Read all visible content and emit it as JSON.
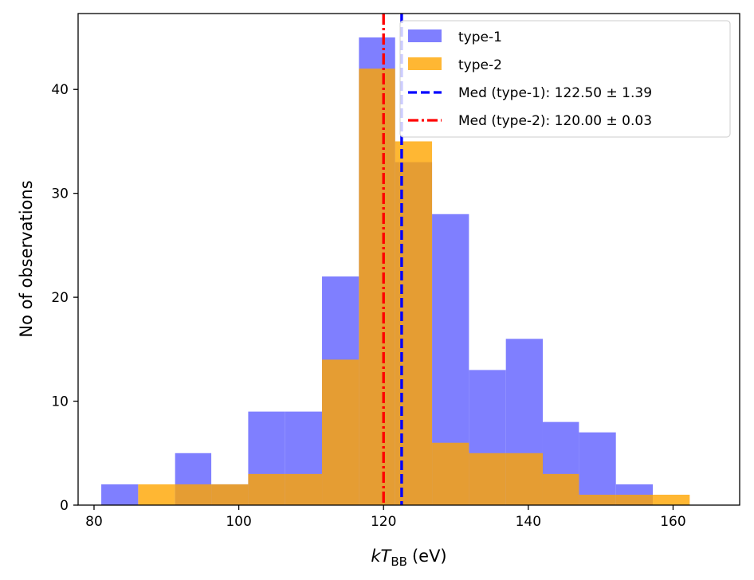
{
  "chart_data": {
    "type": "bar",
    "xlabel_italic": "kT",
    "xlabel_sub": "BB",
    "xlabel_unit": "(eV)",
    "ylabel": "No of observations",
    "xlim": [
      77.8,
      169.2
    ],
    "ylim": [
      0,
      47.3
    ],
    "xticks": [
      80,
      100,
      120,
      140,
      160
    ],
    "yticks": [
      0,
      10,
      20,
      30,
      40
    ],
    "grid": false,
    "legend_position": "top-right",
    "series": [
      {
        "name": "type-1",
        "color": "#7f7fff",
        "bins": [
          {
            "x0": 81.0,
            "x1": 86.1,
            "count": 2
          },
          {
            "x0": 86.1,
            "x1": 91.2,
            "count": 0
          },
          {
            "x0": 91.2,
            "x1": 96.2,
            "count": 5
          },
          {
            "x0": 96.2,
            "x1": 101.3,
            "count": 2
          },
          {
            "x0": 101.3,
            "x1": 106.4,
            "count": 9
          },
          {
            "x0": 106.4,
            "x1": 111.5,
            "count": 9
          },
          {
            "x0": 111.5,
            "x1": 116.6,
            "count": 22
          },
          {
            "x0": 116.6,
            "x1": 121.6,
            "count": 45
          },
          {
            "x0": 121.6,
            "x1": 126.7,
            "count": 33
          },
          {
            "x0": 126.7,
            "x1": 131.8,
            "count": 28
          },
          {
            "x0": 131.8,
            "x1": 136.9,
            "count": 13
          },
          {
            "x0": 136.9,
            "x1": 142.0,
            "count": 16
          },
          {
            "x0": 142.0,
            "x1": 147.0,
            "count": 8
          },
          {
            "x0": 147.0,
            "x1": 152.1,
            "count": 7
          },
          {
            "x0": 152.1,
            "x1": 157.2,
            "count": 2
          }
        ]
      },
      {
        "name": "type-2",
        "color": "#ffa500",
        "bins": [
          {
            "x0": 86.1,
            "x1": 91.2,
            "count": 2
          },
          {
            "x0": 91.2,
            "x1": 96.2,
            "count": 2
          },
          {
            "x0": 96.2,
            "x1": 101.3,
            "count": 2
          },
          {
            "x0": 101.3,
            "x1": 106.4,
            "count": 3
          },
          {
            "x0": 106.4,
            "x1": 111.5,
            "count": 3
          },
          {
            "x0": 111.5,
            "x1": 116.6,
            "count": 14
          },
          {
            "x0": 116.6,
            "x1": 121.6,
            "count": 42
          },
          {
            "x0": 121.6,
            "x1": 126.7,
            "count": 35
          },
          {
            "x0": 126.7,
            "x1": 131.8,
            "count": 6
          },
          {
            "x0": 131.8,
            "x1": 136.9,
            "count": 5
          },
          {
            "x0": 136.9,
            "x1": 142.0,
            "count": 5
          },
          {
            "x0": 142.0,
            "x1": 147.0,
            "count": 3
          },
          {
            "x0": 147.0,
            "x1": 152.1,
            "count": 1
          },
          {
            "x0": 152.1,
            "x1": 157.2,
            "count": 1
          },
          {
            "x0": 157.2,
            "x1": 162.3,
            "count": 1
          }
        ]
      }
    ],
    "medians": [
      {
        "label": "Med (type-1): 122.50 ± 1.39",
        "value": 122.5,
        "color": "#0000ff",
        "style": "dashed"
      },
      {
        "label": "Med (type-2): 120.00 ± 0.03",
        "value": 120.0,
        "color": "#ff0000",
        "style": "dashdot"
      }
    ]
  }
}
